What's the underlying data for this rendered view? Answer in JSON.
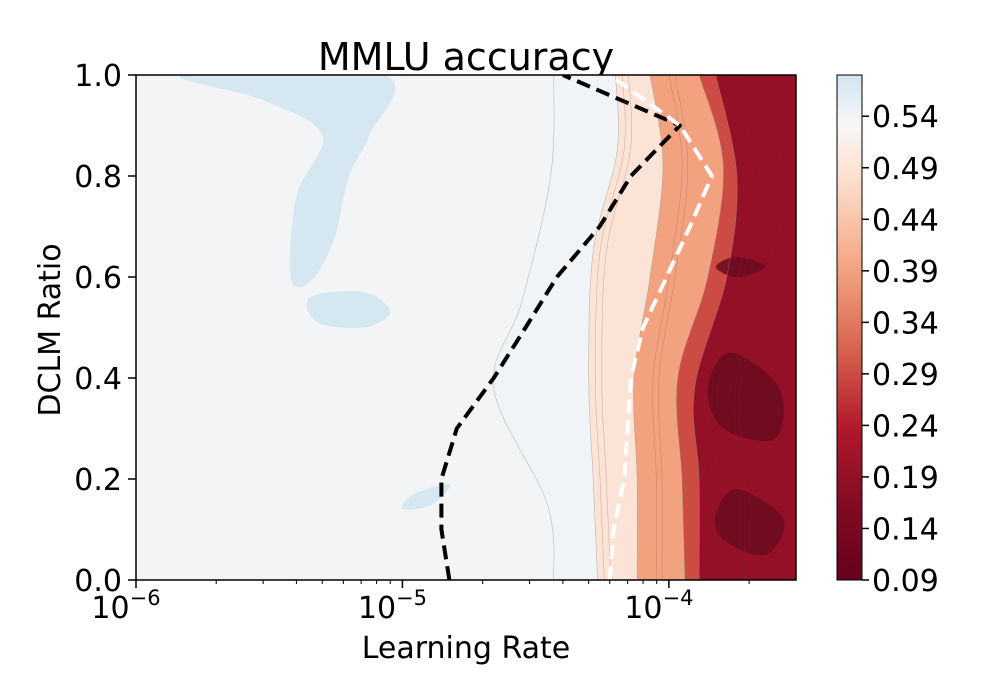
{
  "chart_data": {
    "type": "heatmap",
    "title": "MMLU accuracy",
    "xlabel": "Learning Rate",
    "ylabel": "DCLM Ratio",
    "x_scale": "log",
    "xlim": [
      1e-06,
      0.0003
    ],
    "ylim": [
      0.0,
      1.0
    ],
    "x_ticks": [
      {
        "base": "10",
        "exp": "−6",
        "value": 1e-06
      },
      {
        "base": "10",
        "exp": "−5",
        "value": 1e-05
      },
      {
        "base": "10",
        "exp": "−4",
        "value": 0.0001
      }
    ],
    "y_ticks": [
      "0.0",
      "0.2",
      "0.4",
      "0.6",
      "0.8",
      "1.0"
    ],
    "y_tick_values": [
      0.0,
      0.2,
      0.4,
      0.6,
      0.8,
      1.0
    ],
    "colorbar": {
      "colormap": "RdBu (diverging, red = low, blue = high)",
      "range": [
        0.09,
        0.58
      ],
      "ticks": [
        "0.54",
        "0.49",
        "0.44",
        "0.39",
        "0.34",
        "0.29",
        "0.24",
        "0.19",
        "0.14",
        "0.09"
      ],
      "tick_values": [
        0.54,
        0.49,
        0.44,
        0.39,
        0.34,
        0.29,
        0.24,
        0.19,
        0.14,
        0.09
      ]
    },
    "colors": {
      "plateau": "#f3f4f6",
      "high_blue": "#d5e7f1",
      "red_dark": "#6b0b20",
      "red_mid": "#c23a3c",
      "orange": "#e8896c",
      "peach": "#f7cdb7"
    },
    "contour_fronts": [
      {
        "level": 0.54,
        "points": [
          [
            3.7e-05,
            0.0
          ],
          [
            3.5e-05,
            0.15
          ],
          [
            2.2e-05,
            0.38
          ],
          [
            2.8e-05,
            0.55
          ],
          [
            3.6e-05,
            0.8
          ],
          [
            3.7e-05,
            1.0
          ]
        ]
      },
      {
        "level": 0.49,
        "points": [
          [
            5.4e-05,
            0.0
          ],
          [
            5.2e-05,
            0.2
          ],
          [
            5e-05,
            0.4
          ],
          [
            5.2e-05,
            0.65
          ],
          [
            6.4e-05,
            0.85
          ],
          [
            6.3e-05,
            1.0
          ]
        ]
      },
      {
        "level": 0.39,
        "points": [
          [
            7.6e-05,
            0.0
          ],
          [
            7.6e-05,
            0.2
          ],
          [
            7.4e-05,
            0.4
          ],
          [
            8.5e-05,
            0.6
          ],
          [
            9.5e-05,
            0.82
          ],
          [
            8.5e-05,
            1.0
          ]
        ]
      },
      {
        "level": 0.29,
        "points": [
          [
            0.000115,
            0.0
          ],
          [
            0.000112,
            0.2
          ],
          [
            0.000108,
            0.4
          ],
          [
            0.00014,
            0.6
          ],
          [
            0.00016,
            0.82
          ],
          [
            0.00013,
            1.0
          ]
        ]
      },
      {
        "level": 0.19,
        "points": [
          [
            0.00013,
            0.0
          ],
          [
            0.00013,
            0.2
          ],
          [
            0.000125,
            0.38
          ],
          [
            0.000165,
            0.6
          ],
          [
            0.00018,
            0.8
          ],
          [
            0.00015,
            1.0
          ]
        ]
      }
    ],
    "high_regions": [
      {
        "name": "top",
        "points": [
          [
            1.5e-06,
            1.0
          ],
          [
            8.5e-06,
            1.0
          ],
          [
            7.5e-06,
            0.88
          ],
          [
            6.3e-06,
            0.8
          ],
          [
            5.5e-06,
            0.67
          ],
          [
            4.5e-06,
            0.59
          ],
          [
            3.8e-06,
            0.6
          ],
          [
            4e-06,
            0.76
          ],
          [
            5e-06,
            0.88
          ],
          [
            3e-06,
            0.95
          ]
        ]
      },
      {
        "name": "mid",
        "points": [
          [
            4.5e-06,
            0.56
          ],
          [
            7.2e-06,
            0.57
          ],
          [
            9e-06,
            0.53
          ],
          [
            7.2e-06,
            0.5
          ],
          [
            4.8e-06,
            0.51
          ]
        ]
      },
      {
        "name": "low",
        "points": [
          [
            1.1e-05,
            0.17
          ],
          [
            1.5e-05,
            0.19
          ],
          [
            1.3e-05,
            0.15
          ],
          [
            1e-05,
            0.14
          ]
        ]
      }
    ],
    "series": [
      {
        "color": "#000000",
        "style": "dashed",
        "points": [
          [
            1.5e-05,
            0.0
          ],
          [
            1.4e-05,
            0.1
          ],
          [
            1.4e-05,
            0.2
          ],
          [
            1.6e-05,
            0.3
          ],
          [
            2.2e-05,
            0.4
          ],
          [
            2.9e-05,
            0.5
          ],
          [
            3.8e-05,
            0.6
          ],
          [
            5.5e-05,
            0.7
          ],
          [
            7.2e-05,
            0.8
          ],
          [
            0.00011,
            0.9
          ],
          [
            4e-05,
            1.0
          ]
        ]
      },
      {
        "color": "#ffffff",
        "style": "dashed",
        "points": [
          [
            6e-05,
            0.0
          ],
          [
            6.2e-05,
            0.1
          ],
          [
            6.8e-05,
            0.2
          ],
          [
            7e-05,
            0.3
          ],
          [
            7.2e-05,
            0.4
          ],
          [
            8e-05,
            0.5
          ],
          [
            9.8e-05,
            0.6
          ],
          [
            0.00012,
            0.7
          ],
          [
            0.000145,
            0.8
          ],
          [
            0.00011,
            0.9
          ],
          [
            6e-05,
            1.0
          ]
        ]
      }
    ]
  }
}
